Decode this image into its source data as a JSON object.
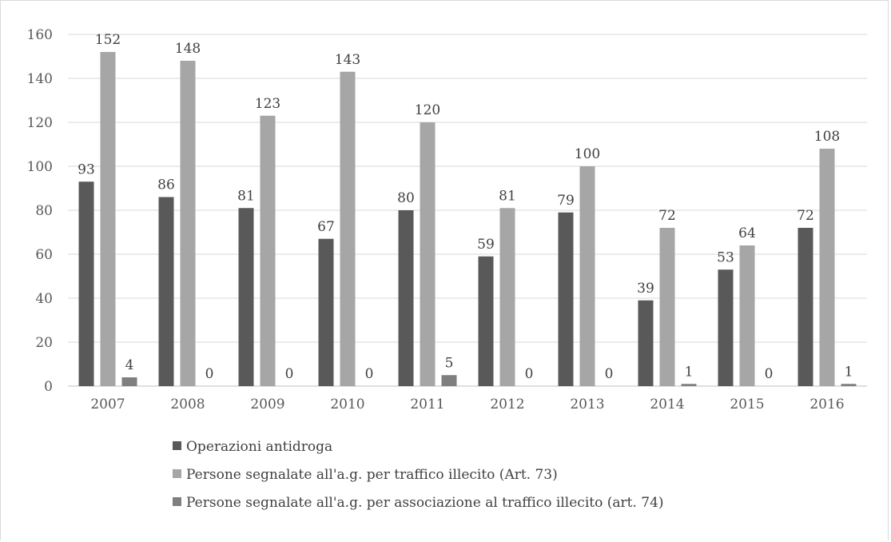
{
  "chart_data": {
    "type": "bar",
    "categories": [
      "2007",
      "2008",
      "2009",
      "2010",
      "2011",
      "2012",
      "2013",
      "2014",
      "2015",
      "2016"
    ],
    "series": [
      {
        "name": "Operazioni antidroga",
        "color": "#595959",
        "values": [
          93,
          86,
          81,
          67,
          80,
          59,
          79,
          39,
          53,
          72
        ]
      },
      {
        "name": "Persone segnalate all'a.g. per traffico illecito (Art. 73)",
        "color": "#a6a6a6",
        "values": [
          152,
          148,
          123,
          143,
          120,
          81,
          100,
          72,
          64,
          108
        ]
      },
      {
        "name": "Persone segnalate all'a.g. per associazione al traffico illecito (art. 74)",
        "color": "#7f7f7f",
        "values": [
          4,
          0,
          0,
          0,
          5,
          0,
          0,
          1,
          0,
          1
        ]
      }
    ],
    "ylim": [
      0,
      160
    ],
    "yticks": [
      0,
      20,
      40,
      60,
      80,
      100,
      120,
      140,
      160
    ],
    "grid": true,
    "legend_position": "bottom",
    "data_labels": true
  }
}
